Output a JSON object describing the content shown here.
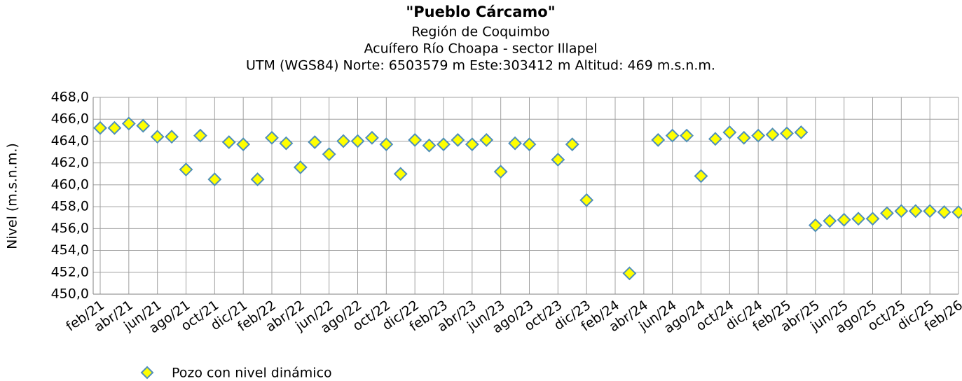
{
  "chart_data": {
    "type": "scatter",
    "title": "\"Pueblo Cárcamo\"",
    "subtitles": [
      "Región de Coquimbo",
      "Acuífero Río Choapa - sector Illapel",
      "UTM (WGS84) Norte: 6503579 m   Este:303412 m   Altitud: 469 m.s.n.m."
    ],
    "y_label": "Nivel (m.s.n.m.)",
    "categories": [
      "feb/21",
      null,
      "abr/21",
      null,
      "jun/21",
      null,
      "ago/21",
      null,
      "oct/21",
      null,
      "dic/21",
      null,
      "feb/22",
      null,
      "abr/22",
      null,
      "jun/22",
      null,
      "ago/22",
      null,
      "oct/22",
      null,
      "dic/22",
      null,
      "feb/23",
      null,
      "abr/23",
      null,
      "jun/23",
      null,
      "ago/23",
      null,
      "oct/23",
      null,
      "dic/23",
      null,
      "feb/24",
      null,
      "abr/24",
      null,
      "jun/24",
      null,
      "ago/24",
      null,
      "oct/24",
      null,
      "dic/24",
      null,
      "feb/25",
      null,
      "abr/25",
      null,
      "jun/25",
      null,
      "ago/25",
      null,
      "oct/25",
      null,
      "dic/25",
      null,
      "feb/26"
    ],
    "series": [
      {
        "name": "Pozo con nivel dinámico",
        "color": "#ffff00",
        "edge_color": "#4f8fba",
        "values": [
          465.2,
          465.2,
          465.6,
          465.4,
          464.4,
          464.4,
          461.4,
          464.5,
          460.5,
          463.9,
          463.7,
          460.5,
          464.3,
          463.8,
          461.6,
          463.9,
          462.8,
          464.0,
          464.0,
          464.3,
          463.7,
          461.0,
          464.1,
          463.6,
          463.7,
          464.1,
          463.7,
          464.1,
          461.2,
          463.8,
          463.7,
          null,
          462.3,
          463.7,
          458.6,
          null,
          null,
          451.9,
          null,
          464.1,
          464.5,
          464.5,
          460.8,
          464.2,
          464.8,
          464.3,
          464.5,
          464.6,
          464.7,
          464.8,
          456.3,
          456.7,
          456.8,
          456.9,
          456.9,
          457.4,
          457.6,
          457.6,
          457.6,
          457.5,
          457.5
        ]
      }
    ],
    "ylim": [
      450,
      468
    ],
    "yticks": [
      {
        "value": 450,
        "label": "450,0"
      },
      {
        "value": 452,
        "label": "452,0"
      },
      {
        "value": 454,
        "label": "454,0"
      },
      {
        "value": 456,
        "label": "456,0"
      },
      {
        "value": 458,
        "label": "458,0"
      },
      {
        "value": 460,
        "label": "460,0"
      },
      {
        "value": 462,
        "label": "462,0"
      },
      {
        "value": 464,
        "label": "464,0"
      },
      {
        "value": 466,
        "label": "466,0"
      },
      {
        "value": 468,
        "label": "468,0"
      }
    ],
    "grid": true
  }
}
